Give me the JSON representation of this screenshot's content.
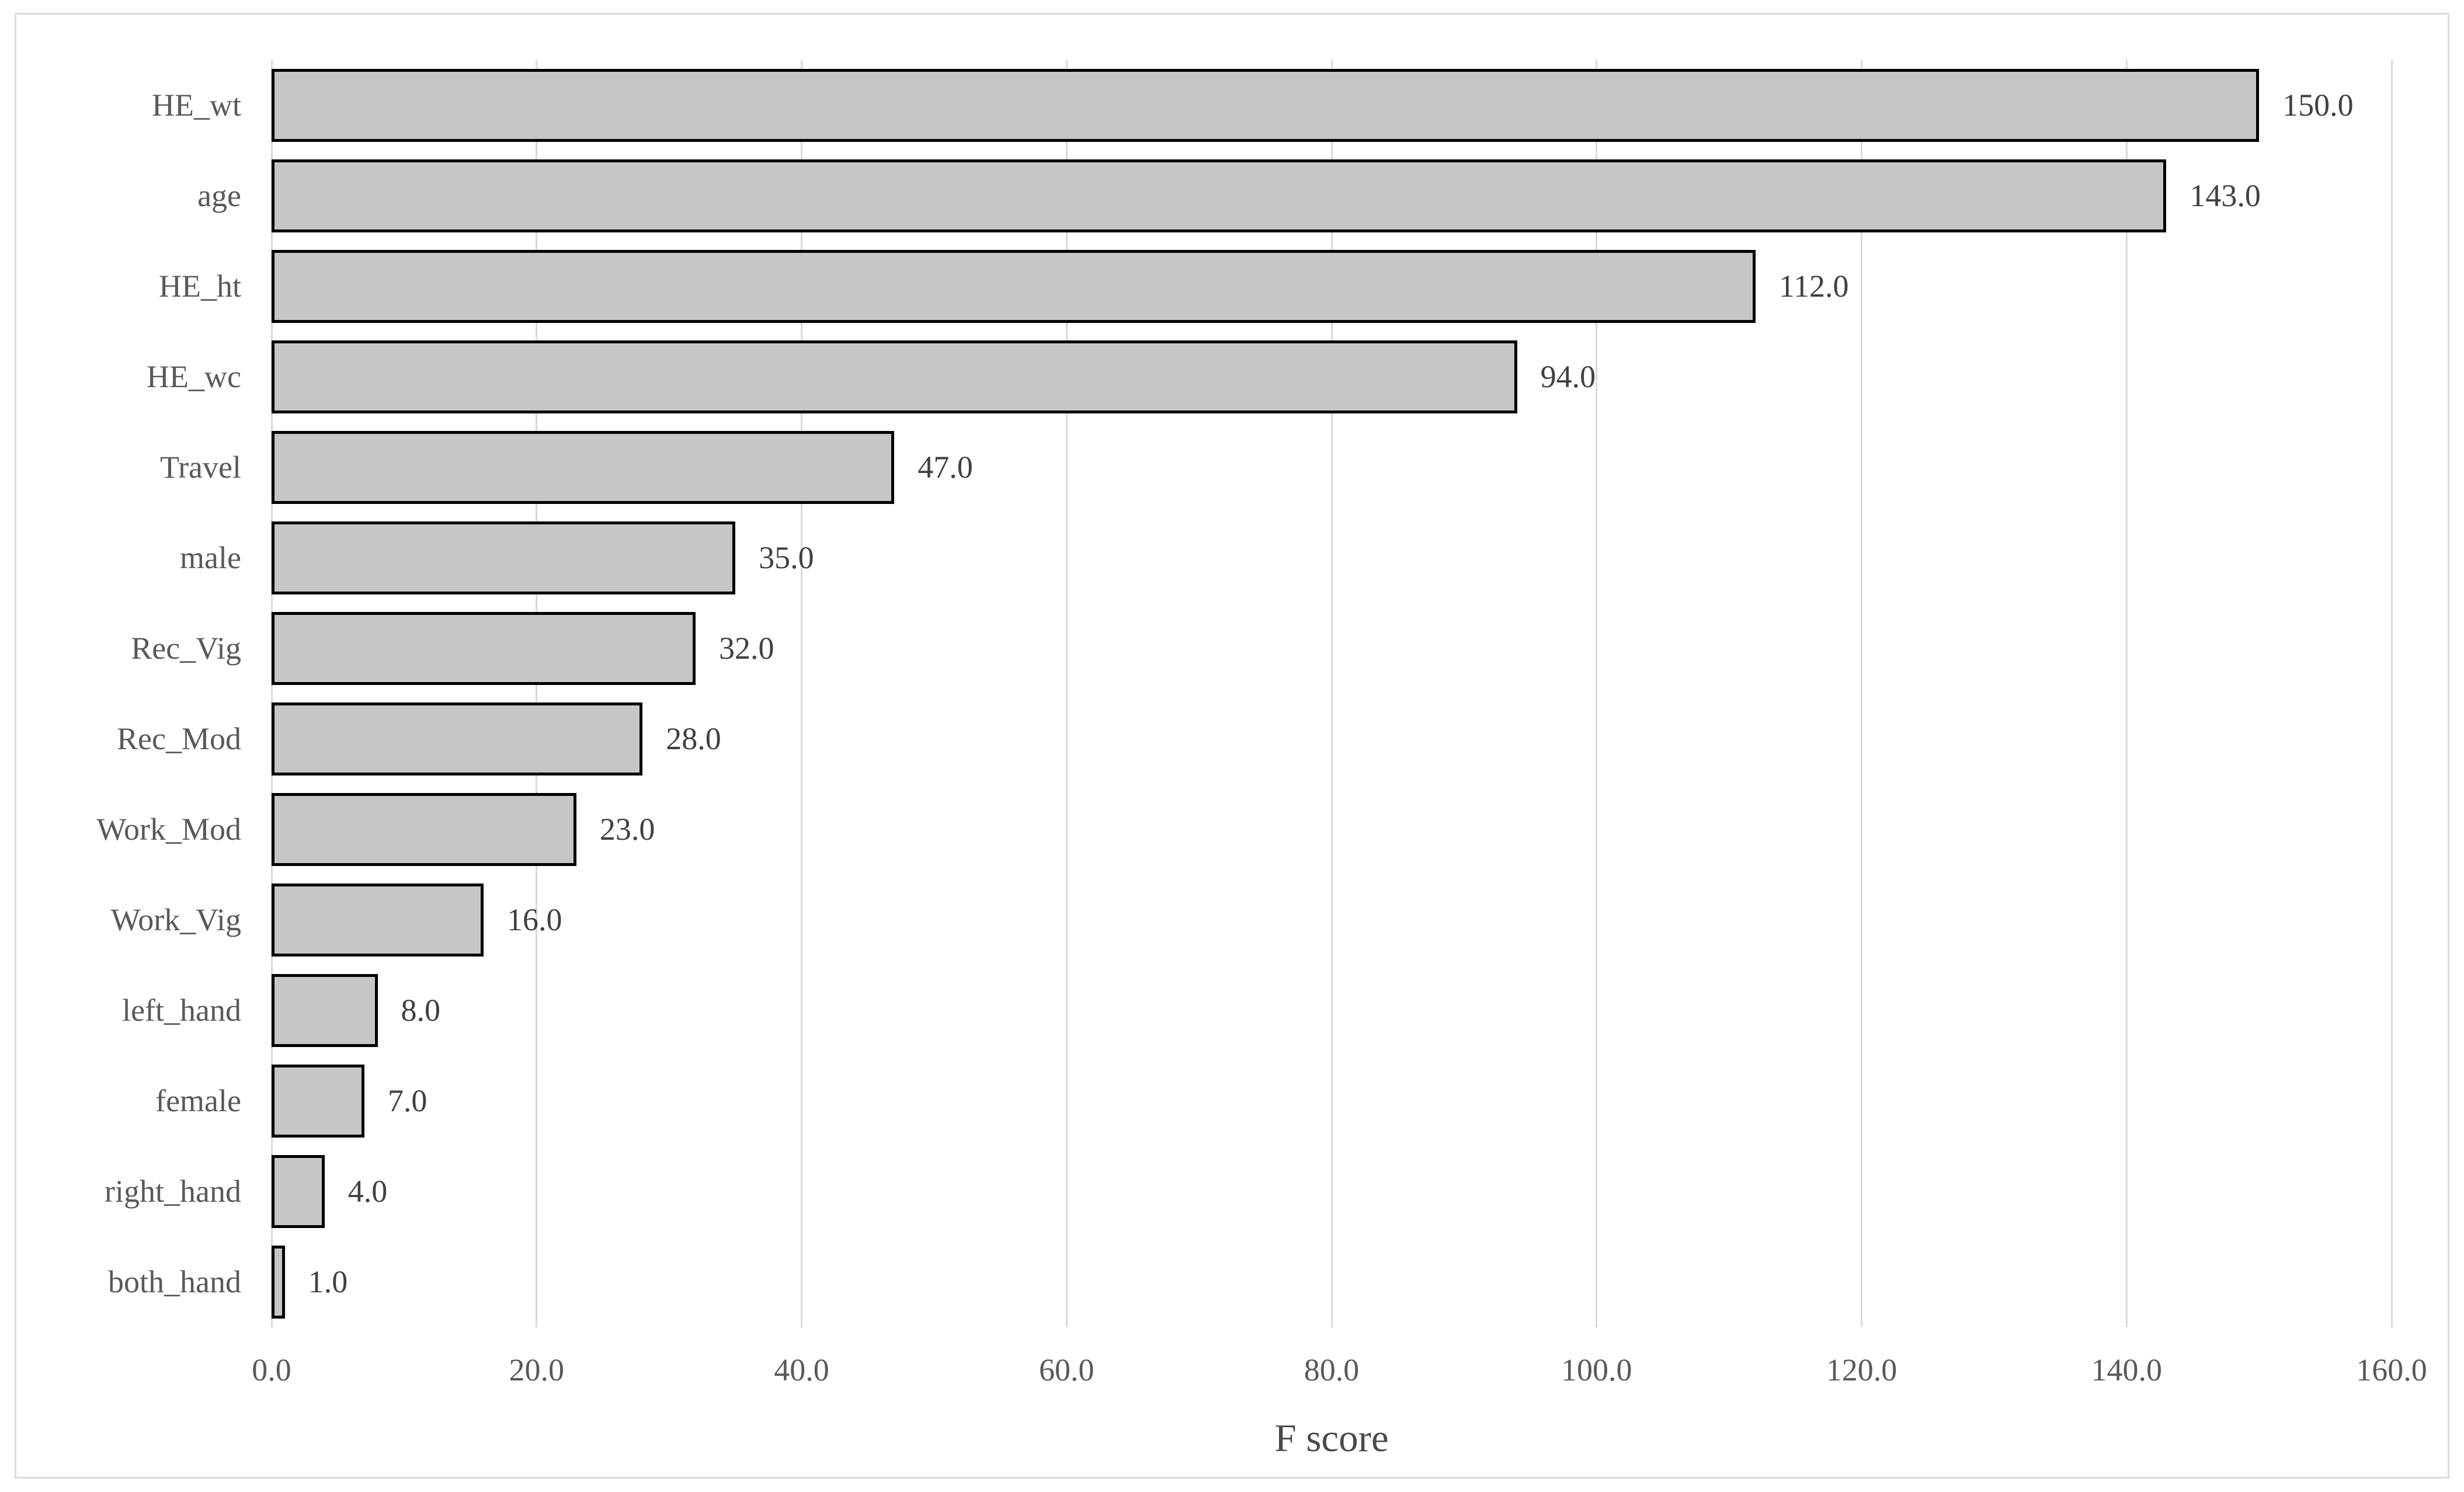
{
  "chart_data": {
    "type": "bar",
    "orientation": "horizontal",
    "title": "",
    "xlabel": "F score",
    "ylabel": "",
    "categories": [
      "HE_wt",
      "age",
      "HE_ht",
      "HE_wc",
      "Travel",
      "male",
      "Rec_Vig",
      "Rec_Mod",
      "Work_Mod",
      "Work_Vig",
      "left_hand",
      "female",
      "right_hand",
      "both_hand"
    ],
    "values": [
      150.0,
      143.0,
      112.0,
      94.0,
      47.0,
      35.0,
      32.0,
      28.0,
      23.0,
      16.0,
      8.0,
      7.0,
      4.0,
      1.0
    ],
    "data_labels": [
      "150.0",
      "143.0",
      "112.0",
      "94.0",
      "47.0",
      "35.0",
      "32.0",
      "28.0",
      "23.0",
      "16.0",
      "8.0",
      "7.0",
      "4.0",
      "1.0"
    ],
    "x_ticks": [
      "0.0",
      "20.0",
      "40.0",
      "60.0",
      "80.0",
      "100.0",
      "120.0",
      "140.0",
      "160.0"
    ],
    "xlim": [
      0,
      160
    ],
    "grid": "vertical-only",
    "legend": "none",
    "colors": {
      "bar_fill": "#c6c6c6",
      "bar_border": "#000000",
      "gridline": "#d9d9d9",
      "axis_text": "#595959",
      "value_text": "#404040",
      "title_text": "#4a4a4a",
      "frame_border": "#dcdcdc",
      "background": "#ffffff"
    }
  }
}
